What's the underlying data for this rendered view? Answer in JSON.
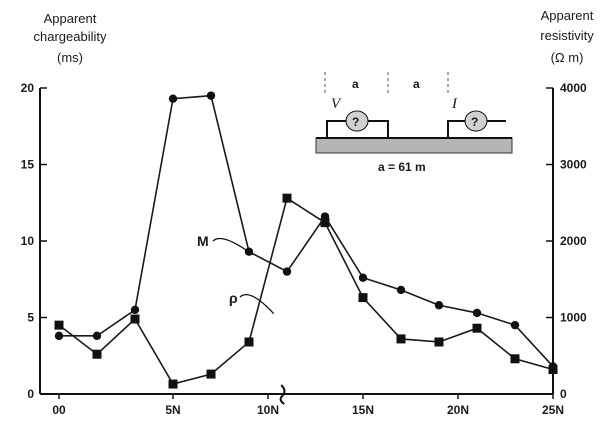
{
  "labels": {
    "left_title_line1": "Apparent",
    "left_title_line2": "chargeability",
    "left_unit": "(ms)",
    "right_title_line1": "Apparent",
    "right_title_line2": "resistivity",
    "right_unit": "(Ω m)"
  },
  "inset": {
    "spacing_label_1": "a",
    "spacing_label_2": "a",
    "v_label": "V",
    "i_label": "I",
    "caption": "a = 61 m"
  },
  "chart_data": {
    "type": "line",
    "x_ticks": [
      {
        "x": -1,
        "label": "00"
      },
      {
        "x": 5,
        "label": "5N"
      },
      {
        "x": 10,
        "label": "10N"
      },
      {
        "x": 15,
        "label": "15N"
      },
      {
        "x": 20,
        "label": "20N"
      },
      {
        "x": 25,
        "label": "25N"
      }
    ],
    "xlim": [
      -2,
      25
    ],
    "y_left": {
      "label": "Apparent chargeability (ms)",
      "lim": [
        0,
        20
      ],
      "ticks": [
        0,
        5,
        10,
        15,
        20
      ]
    },
    "y_right": {
      "label": "Apparent resistivity (Ω m)",
      "lim": [
        0,
        4000
      ],
      "ticks": [
        0,
        1000,
        2000,
        3000,
        4000
      ]
    },
    "series": [
      {
        "name": "M",
        "axis": "left",
        "marker": "circle",
        "points": [
          [
            -1,
            3.8
          ],
          [
            1,
            3.8
          ],
          [
            3,
            5.5
          ],
          [
            5,
            19.3
          ],
          [
            7,
            19.5
          ],
          [
            9,
            9.3
          ],
          [
            11,
            8.0
          ],
          [
            13,
            11.6
          ],
          [
            15,
            7.6
          ],
          [
            17,
            6.8
          ],
          [
            19,
            5.8
          ],
          [
            21,
            5.3
          ],
          [
            23,
            4.5
          ],
          [
            25,
            1.8
          ]
        ]
      },
      {
        "name": "ρ",
        "axis": "right",
        "marker": "square",
        "points": [
          [
            -1,
            900
          ],
          [
            1,
            520
          ],
          [
            3,
            980
          ],
          [
            5,
            130
          ],
          [
            7,
            260
          ],
          [
            9,
            680
          ],
          [
            11,
            2560
          ],
          [
            13,
            2240
          ],
          [
            15,
            1260
          ],
          [
            17,
            720
          ],
          [
            19,
            680
          ],
          [
            21,
            860
          ],
          [
            23,
            460
          ],
          [
            25,
            320
          ]
        ]
      }
    ],
    "annotation": {
      "type": "axis-break",
      "x": 10.8
    }
  }
}
